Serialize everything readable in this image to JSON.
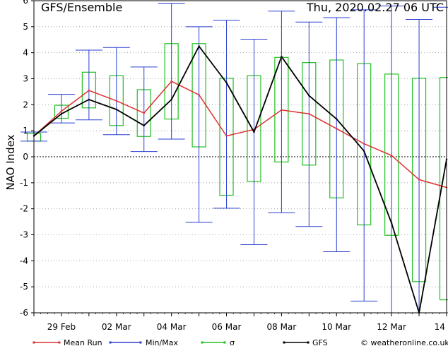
{
  "header": {
    "title": "GFS/Ensemble",
    "run": "Thu, 2020.02.27   06 UTC"
  },
  "colors": {
    "mean": "#e03030",
    "minmax": "#2a3fd0",
    "sigma": "#22c022",
    "gfs": "#000000",
    "grid": "#999999"
  },
  "legend": {
    "mean": "Mean Run",
    "minmax": "Min/Max",
    "sigma": "σ",
    "gfs": "GFS",
    "credit": "© weatheronline.co.uk"
  },
  "chart_data": {
    "type": "line",
    "ylabel": "NAO Index",
    "xlabel": "",
    "ylim": [
      -6,
      6
    ],
    "yticks": [
      -6,
      -5,
      -4,
      -3,
      -2,
      -1,
      0,
      1,
      2,
      3,
      4,
      5,
      6
    ],
    "xlim": [
      0,
      15
    ],
    "xtick_labels": [
      {
        "x": 1.0,
        "label": "29 Feb"
      },
      {
        "x": 3.0,
        "label": "02 Mar"
      },
      {
        "x": 5.0,
        "label": "04 Mar"
      },
      {
        "x": 7.0,
        "label": "06 Mar"
      },
      {
        "x": 9.0,
        "label": "08 Mar"
      },
      {
        "x": 11.0,
        "label": "10 Mar"
      },
      {
        "x": 13.0,
        "label": "12 Mar"
      },
      {
        "x": 14.75,
        "label": "14"
      }
    ],
    "grid": true,
    "legend_position": "bottom",
    "x": [
      0,
      1,
      2,
      3,
      4,
      5,
      6,
      7,
      8,
      9,
      10,
      11,
      12,
      13,
      14,
      15
    ],
    "series": [
      {
        "name": "Mean Run",
        "values": [
          0.8,
          1.75,
          2.55,
          2.15,
          1.68,
          2.9,
          2.38,
          0.8,
          1.05,
          1.8,
          1.65,
          1.08,
          0.5,
          0.05,
          -0.88,
          -1.18
        ]
      },
      {
        "name": "GFS",
        "values": [
          0.8,
          1.65,
          2.2,
          1.82,
          1.2,
          2.2,
          4.25,
          2.85,
          0.95,
          3.85,
          2.35,
          1.45,
          0.22,
          -2.55,
          -6.0,
          -0.1
        ]
      }
    ],
    "min_max": [
      {
        "x": 0,
        "min": 0.6,
        "max": 0.95
      },
      {
        "x": 1,
        "min": 1.3,
        "max": 2.4
      },
      {
        "x": 2,
        "min": 1.42,
        "max": 4.1
      },
      {
        "x": 3,
        "min": 0.85,
        "max": 4.2
      },
      {
        "x": 4,
        "min": 0.2,
        "max": 3.45
      },
      {
        "x": 5,
        "min": 0.68,
        "max": 5.9
      },
      {
        "x": 6,
        "min": -2.52,
        "max": 5.0
      },
      {
        "x": 7,
        "min": -1.98,
        "max": 5.25
      },
      {
        "x": 8,
        "min": -3.38,
        "max": 4.52
      },
      {
        "x": 9,
        "min": -2.15,
        "max": 5.6
      },
      {
        "x": 10,
        "min": -2.68,
        "max": 5.18
      },
      {
        "x": 11,
        "min": -3.65,
        "max": 5.35
      },
      {
        "x": 12,
        "min": -5.55,
        "max": 5.65
      },
      {
        "x": 13,
        "min": -6.0,
        "max": 5.8
      },
      {
        "x": 14,
        "min": -6.0,
        "max": 5.28
      },
      {
        "x": 15,
        "min": -6.0,
        "max": 5.75
      }
    ],
    "sigma": [
      {
        "x": 0,
        "low": 0.6,
        "high": 0.9
      },
      {
        "x": 1,
        "low": 1.48,
        "high": 1.98
      },
      {
        "x": 2,
        "low": 1.88,
        "high": 3.25
      },
      {
        "x": 3,
        "low": 1.2,
        "high": 3.12
      },
      {
        "x": 4,
        "low": 0.78,
        "high": 2.58
      },
      {
        "x": 5,
        "low": 1.45,
        "high": 4.35
      },
      {
        "x": 6,
        "low": 0.38,
        "high": 4.35
      },
      {
        "x": 7,
        "low": -1.48,
        "high": 3.02
      },
      {
        "x": 8,
        "low": -0.95,
        "high": 3.12
      },
      {
        "x": 9,
        "low": -0.2,
        "high": 3.82
      },
      {
        "x": 10,
        "low": -0.32,
        "high": 3.62
      },
      {
        "x": 11,
        "low": -1.58,
        "high": 3.72
      },
      {
        "x": 12,
        "low": -2.62,
        "high": 3.58
      },
      {
        "x": 13,
        "low": -3.02,
        "high": 3.18
      },
      {
        "x": 14,
        "low": -4.8,
        "high": 3.02
      },
      {
        "x": 15,
        "low": -5.5,
        "high": 3.05
      }
    ]
  }
}
